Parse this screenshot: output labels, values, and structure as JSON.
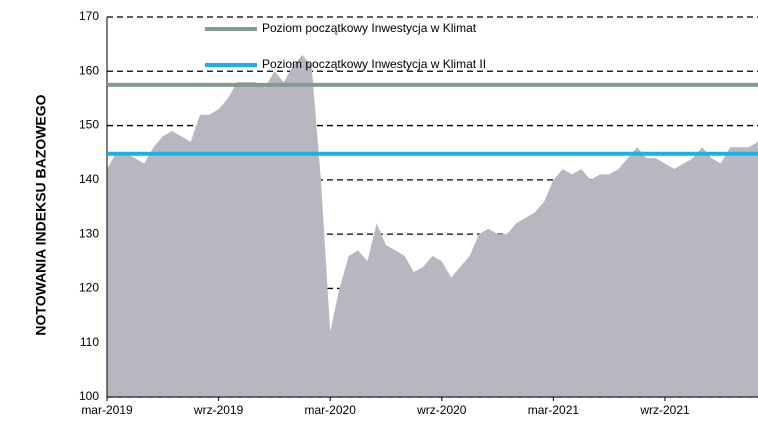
{
  "chart_data": {
    "type": "area",
    "y_label": "NOTOWANIA INDEKSU BAZOWEGO",
    "categories": [
      "mar-2019",
      null,
      null,
      null,
      null,
      null,
      null,
      null,
      null,
      null,
      null,
      null,
      "wrz-2019",
      null,
      null,
      null,
      null,
      null,
      null,
      null,
      null,
      null,
      null,
      null,
      "mar-2020",
      null,
      null,
      null,
      null,
      null,
      null,
      null,
      null,
      null,
      null,
      null,
      "wrz-2020",
      null,
      null,
      null,
      null,
      null,
      null,
      null,
      null,
      null,
      null,
      null,
      "mar-2021",
      null,
      null,
      null,
      null,
      null,
      null,
      null,
      null,
      null,
      null,
      null,
      "wrz-2021",
      null,
      null,
      null,
      null,
      null,
      null,
      null,
      null,
      null,
      null
    ],
    "values": [
      142,
      145,
      145,
      144,
      143,
      146,
      148,
      149,
      148,
      147,
      152,
      152,
      153,
      155,
      158,
      158,
      158,
      157,
      160,
      158,
      161,
      163,
      161,
      140,
      112,
      120,
      126,
      127,
      125,
      132,
      128,
      127,
      126,
      123,
      124,
      126,
      125,
      122,
      124,
      126,
      130,
      131,
      130,
      130,
      132,
      133,
      134,
      136,
      140,
      142,
      141,
      142,
      140,
      141,
      141,
      142,
      144,
      146,
      144,
      144,
      143,
      142,
      143,
      144,
      146,
      144,
      143,
      146,
      146,
      146,
      147
    ],
    "color": "#b8b7c1",
    "reference_lines": [
      {
        "name": "Poziom początkowy Inwestycja w Klimat",
        "color": "#7f9c8e",
        "value": 157.5
      },
      {
        "name": "Poziom początkowy Inwestycja w Klimat II",
        "color": "#1ab0e8",
        "value": 144.8
      }
    ],
    "ylim": [
      100,
      170
    ],
    "yticks": [
      100,
      110,
      120,
      130,
      140,
      150,
      160,
      170
    ],
    "grid": true
  }
}
